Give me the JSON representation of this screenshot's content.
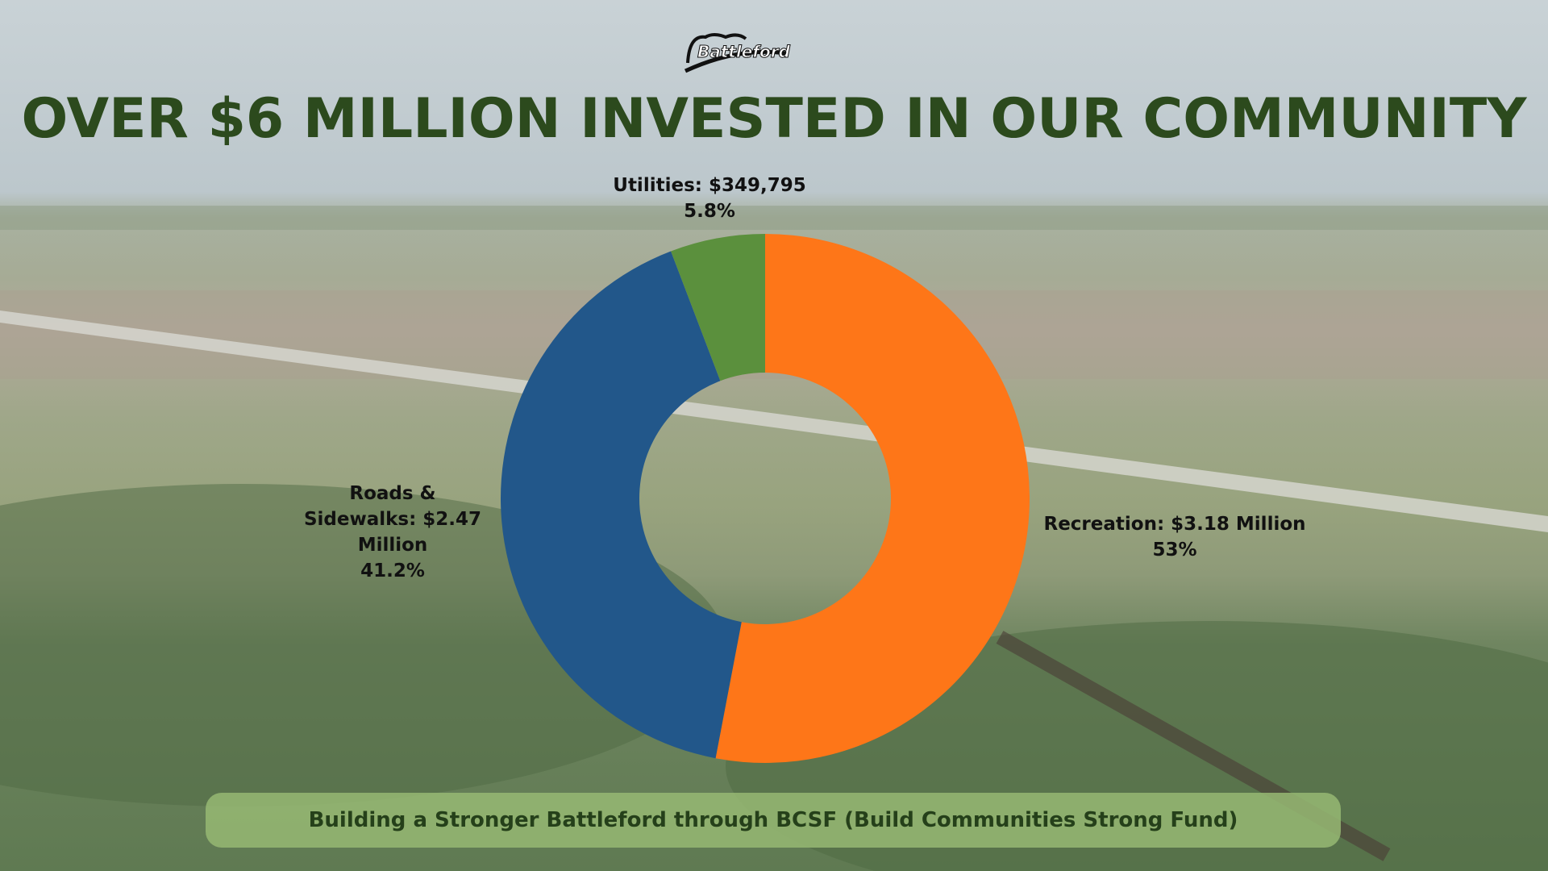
{
  "logo": "Battleford",
  "chart_data": {
    "type": "donut",
    "title": "OVER $6 MILLION INVESTED IN OUR COMMUNITY",
    "categories": [
      "Recreation: $3.18 Million",
      "Roads & Sidewalks: $2.47 Million",
      "Utilities: $349,795"
    ],
    "values": [
      53,
      41.2,
      5.8
    ],
    "value_labels": [
      "53%",
      "41.2%",
      "5.8%"
    ],
    "colors": [
      "#fe7618",
      "#22578a",
      "#5b903d"
    ]
  },
  "footer": "Building a Stronger Battleford through BCSF (Build Communities Strong Fund)"
}
